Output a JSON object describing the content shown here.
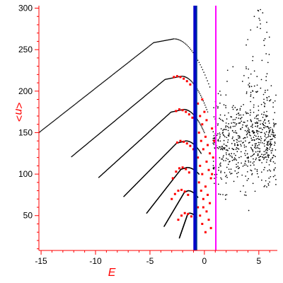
{
  "chart_data": {
    "type": "scatter",
    "xlabel": "E",
    "ylabel": "<n>",
    "xlim": [
      -15.2,
      6.7
    ],
    "ylim": [
      8,
      303
    ],
    "grid": false,
    "axis_color": "#ff0000",
    "label_color": "#ff0000",
    "x_ticks": [
      -15,
      -10,
      -5,
      0,
      5
    ],
    "y_ticks": [
      50,
      100,
      150,
      200,
      250,
      300
    ],
    "x_tick_labels": [
      "-15",
      "-10",
      "-5",
      "0",
      "5"
    ],
    "y_tick_labels": [
      "50",
      "100",
      "150",
      "200",
      "250",
      "300"
    ],
    "series": [
      {
        "color": "#000000",
        "marker": "dot",
        "arcs": [
          {
            "x_start": -15.2,
            "y_start": 150,
            "x_peak": -2.8,
            "y_peak": 263,
            "x_end": 0.5,
            "y_end": 205
          },
          {
            "x_start": -12.2,
            "y_start": 121,
            "x_peak": -2.1,
            "y_peak": 218,
            "x_end": 0.3,
            "y_end": 175
          },
          {
            "x_start": -9.7,
            "y_start": 96,
            "x_peak": -1.9,
            "y_peak": 178,
            "x_end": 0.0,
            "y_end": 150
          },
          {
            "x_start": -7.4,
            "y_start": 73,
            "x_peak": -1.7,
            "y_peak": 140,
            "x_end": -0.3,
            "y_end": 125
          },
          {
            "x_start": -5.3,
            "y_start": 53,
            "x_peak": -1.6,
            "y_peak": 108,
            "x_end": -0.5,
            "y_end": 100
          },
          {
            "x_start": -3.7,
            "y_start": 37,
            "x_peak": -1.5,
            "y_peak": 80,
            "x_end": -0.6,
            "y_end": 72
          },
          {
            "x_start": -2.3,
            "y_start": 23,
            "x_peak": -1.4,
            "y_peak": 53,
            "x_end": -0.7,
            "y_end": 48
          }
        ],
        "cloud": {
          "x_min": 0.8,
          "x_max": 6.6,
          "y_center": 140,
          "y_spread": 45,
          "count": 650
        },
        "upper_tail": {
          "x_min": 3.8,
          "x_max": 6.0,
          "y_min": 190,
          "y_max": 303,
          "count": 55
        }
      },
      {
        "color": "#ff0000",
        "marker": "square",
        "points": [
          [
            -2.8,
            217
          ],
          [
            -2.5,
            218
          ],
          [
            -2.2,
            217
          ],
          [
            -1.9,
            215
          ],
          [
            -1.6,
            212
          ],
          [
            -1.3,
            208
          ],
          [
            -2.6,
            176
          ],
          [
            -2.3,
            178
          ],
          [
            -2.0,
            177
          ],
          [
            -1.7,
            175
          ],
          [
            -1.4,
            172
          ],
          [
            -1.1,
            168
          ],
          [
            -2.5,
            138
          ],
          [
            -2.2,
            140
          ],
          [
            -1.9,
            139
          ],
          [
            -1.6,
            137
          ],
          [
            -1.3,
            134
          ],
          [
            -1.0,
            130
          ],
          [
            -2.9,
            95
          ],
          [
            -2.6,
            103
          ],
          [
            -2.3,
            107
          ],
          [
            -2.0,
            108
          ],
          [
            -1.7,
            106
          ],
          [
            -1.4,
            102
          ],
          [
            -3.0,
            70
          ],
          [
            -2.7,
            76
          ],
          [
            -2.4,
            80
          ],
          [
            -2.1,
            81
          ],
          [
            -1.8,
            79
          ],
          [
            -1.5,
            75
          ],
          [
            -2.4,
            45
          ],
          [
            -2.1,
            50
          ],
          [
            -1.8,
            53
          ],
          [
            -1.5,
            52
          ],
          [
            -1.2,
            49
          ],
          [
            -0.6,
            185
          ],
          [
            -0.4,
            170
          ],
          [
            -0.2,
            160
          ],
          [
            -0.5,
            150
          ],
          [
            -0.3,
            140
          ],
          [
            -0.1,
            130
          ],
          [
            -0.6,
            120
          ],
          [
            -0.4,
            110
          ],
          [
            -0.2,
            100
          ],
          [
            -0.5,
            90
          ],
          [
            -0.3,
            80
          ],
          [
            -0.1,
            70
          ],
          [
            -0.6,
            60
          ],
          [
            -0.4,
            50
          ],
          [
            -0.2,
            40
          ],
          [
            0.1,
            145
          ],
          [
            0.3,
            135
          ],
          [
            0.5,
            125
          ],
          [
            0.2,
            115
          ],
          [
            0.4,
            105
          ],
          [
            0.6,
            95
          ],
          [
            0.1,
            85
          ],
          [
            0.3,
            75
          ],
          [
            0.5,
            65
          ],
          [
            0.2,
            55
          ],
          [
            0.4,
            45
          ],
          [
            0.6,
            35
          ],
          [
            0.7,
            155
          ],
          [
            0.8,
            120
          ],
          [
            0.7,
            100
          ],
          [
            -0.2,
            190
          ],
          [
            0.0,
            175
          ],
          [
            0.2,
            165
          ],
          [
            -0.1,
            60
          ],
          [
            0.1,
            30
          ],
          [
            0.9,
            140
          ]
        ]
      }
    ],
    "vertical_lines": [
      {
        "x": -0.85,
        "color": "#0000cc",
        "width": 5
      },
      {
        "x": -0.72,
        "color": "#003399",
        "width": 2
      },
      {
        "x": 1.05,
        "color": "#ff00ff",
        "width": 2
      }
    ]
  }
}
